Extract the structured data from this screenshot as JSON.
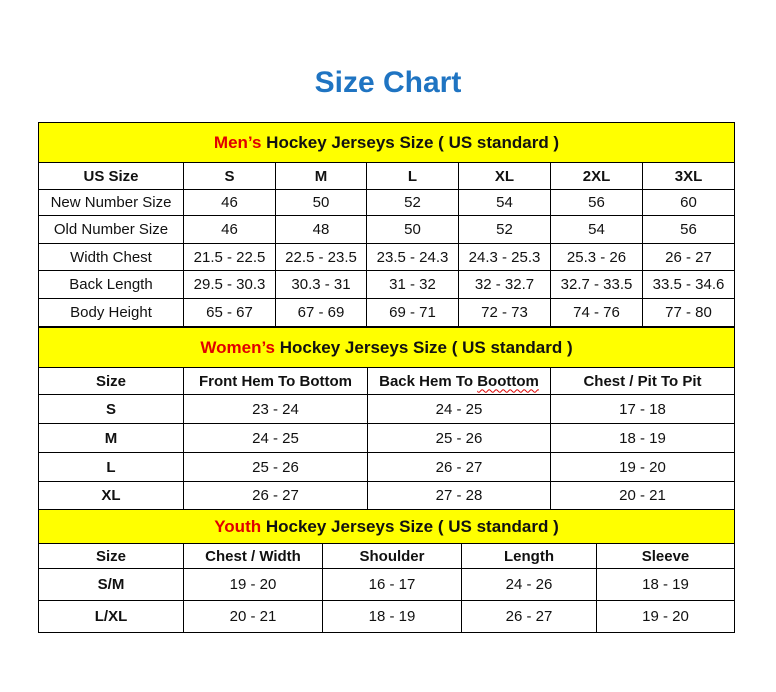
{
  "title": "Size Chart",
  "colors": {
    "title": "#1f74c2",
    "banner": "#ffff00",
    "highlight": "#e00000"
  },
  "men": {
    "banner_prefix": "Men’s",
    "banner_rest": " Hockey Jerseys Size ( US standard )",
    "headers": [
      "US Size",
      "S",
      "M",
      "L",
      "XL",
      "2XL",
      "3XL"
    ],
    "rows": [
      [
        "New Number Size",
        "46",
        "50",
        "52",
        "54",
        "56",
        "60"
      ],
      [
        "Old Number Size",
        "46",
        "48",
        "50",
        "52",
        "54",
        "56"
      ],
      [
        "Width Chest",
        "21.5 - 22.5",
        "22.5 - 23.5",
        "23.5 - 24.3",
        "24.3 - 25.3",
        "25.3 - 26",
        "26 - 27"
      ],
      [
        "Back Length",
        "29.5 - 30.3",
        "30.3 - 31",
        "31 - 32",
        "32 - 32.7",
        "32.7 - 33.5",
        "33.5 - 34.6"
      ],
      [
        "Body Height",
        "65 - 67",
        "67 - 69",
        "69 - 71",
        "72 - 73",
        "74 - 76",
        "77 - 80"
      ]
    ]
  },
  "women": {
    "banner_prefix": "Women’s",
    "banner_rest": " Hockey Jerseys Size ( US standard )",
    "headers": [
      "Size",
      "Front Hem To Bottom",
      "Back Hem To Boottom",
      "Chest / Pit To Pit"
    ],
    "rows": [
      [
        "S",
        "23 - 24",
        "24 - 25",
        "17 - 18"
      ],
      [
        "M",
        "24 - 25",
        "25 - 26",
        "18 - 19"
      ],
      [
        "L",
        "25 - 26",
        "26 - 27",
        "19 - 20"
      ],
      [
        "XL",
        "26 - 27",
        "27 - 28",
        "20 - 21"
      ]
    ]
  },
  "youth": {
    "banner_prefix": "Youth",
    "banner_rest": " Hockey Jerseys Size ( US standard )",
    "headers": [
      "Size",
      "Chest / Width",
      "Shoulder",
      "Length",
      "Sleeve"
    ],
    "rows": [
      [
        "S/M",
        "19 - 20",
        "16 - 17",
        "24 - 26",
        "18 - 19"
      ],
      [
        "L/XL",
        "20 - 21",
        "18 - 19",
        "26 - 27",
        "19 - 20"
      ]
    ]
  }
}
